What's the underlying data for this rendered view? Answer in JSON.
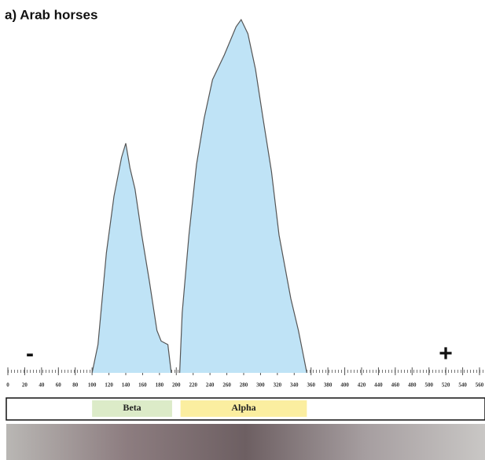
{
  "chart_data": {
    "type": "area",
    "title": "a) Arab horses",
    "x": [
      100,
      107,
      117,
      126,
      135,
      140,
      145,
      151,
      159,
      168,
      177,
      182,
      190,
      194,
      200,
      204,
      207,
      215,
      224,
      233,
      243,
      257,
      271,
      277,
      285,
      294,
      303,
      313,
      322,
      336,
      345,
      355
    ],
    "values": [
      0,
      8,
      34,
      50,
      61,
      65,
      58,
      52,
      39,
      26,
      12,
      9,
      8,
      0,
      null,
      0,
      17,
      39,
      59,
      72,
      83,
      90,
      98,
      100,
      96,
      86,
      72,
      57,
      39,
      21,
      12,
      0
    ],
    "color": "#bfe3f6",
    "line_color": "#555555",
    "xlim": [
      0,
      560
    ],
    "ylim": [
      0,
      100
    ],
    "xticks": [
      0,
      20,
      40,
      60,
      80,
      100,
      120,
      140,
      160,
      180,
      200,
      220,
      240,
      260,
      280,
      300,
      320,
      340,
      360,
      380,
      400,
      420,
      440,
      460,
      480,
      500,
      520,
      540,
      560
    ],
    "bands": [
      {
        "label": "Beta",
        "start": 100,
        "end": 195,
        "color": "#dcebc8"
      },
      {
        "label": "Alpha",
        "start": 205,
        "end": 355,
        "color": "#fbeea0"
      }
    ],
    "annotations": {
      "left": "-",
      "right": "+"
    }
  }
}
